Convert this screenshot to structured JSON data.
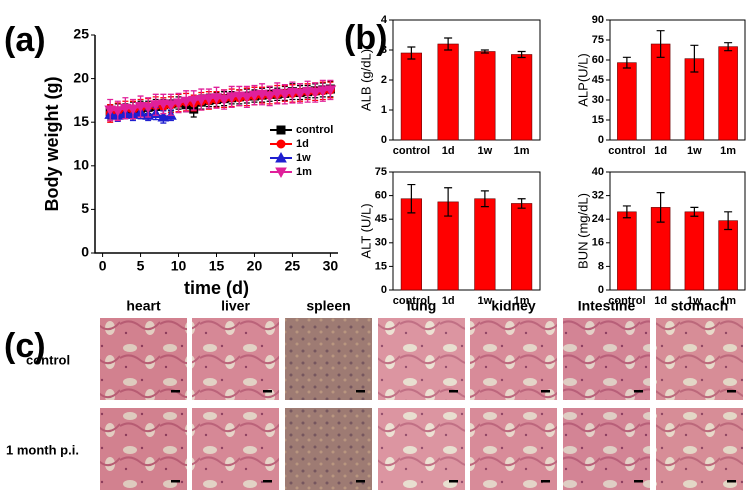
{
  "panels": {
    "labels": [
      "(a)",
      "(b)",
      "(c)"
    ]
  },
  "chart_data": [
    {
      "type": "line",
      "xlabel": "time (d)",
      "ylabel": "Body weight (g)",
      "legend": "right",
      "x": [
        1,
        2,
        3,
        4,
        5,
        6,
        7,
        8,
        9,
        10,
        11,
        12,
        13,
        14,
        15,
        16,
        17,
        18,
        19,
        20,
        21,
        22,
        23,
        24,
        25,
        26,
        27,
        28,
        29,
        30
      ],
      "xlim": [
        -1,
        31
      ],
      "xticks": [
        0,
        5,
        10,
        15,
        20,
        25,
        30
      ],
      "ylim": [
        0,
        25
      ],
      "yticks": [
        0,
        5,
        10,
        15,
        20,
        25
      ],
      "series": [
        {
          "name": "control",
          "color": "#000000",
          "marker": "square",
          "values": [
            16.2,
            16.3,
            16.4,
            16.5,
            16.6,
            16.7,
            16.8,
            17.0,
            17.1,
            17.2,
            17.0,
            16.5,
            17.3,
            17.5,
            17.6,
            17.7,
            17.8,
            17.9,
            18.0,
            18.0,
            18.1,
            18.2,
            18.2,
            18.3,
            18.5,
            18.4,
            18.5,
            18.6,
            18.7,
            18.8
          ],
          "errors": [
            0.8,
            0.8,
            0.7,
            0.8,
            0.8,
            0.7,
            0.8,
            0.6,
            0.8,
            0.7,
            0.8,
            0.9,
            0.8,
            0.7,
            0.8,
            0.8,
            0.7,
            0.8,
            0.8,
            0.7,
            0.8,
            0.8,
            0.7,
            0.8,
            0.9,
            0.8,
            0.7,
            0.8,
            0.8,
            0.9
          ]
        },
        {
          "name": "1d",
          "color": "#ff0000",
          "marker": "circle",
          "values": [
            16.0,
            16.2,
            16.5,
            16.4,
            16.6,
            16.8,
            16.9,
            16.8,
            17.0,
            17.2,
            17.3,
            17.2,
            17.4,
            17.5,
            17.6,
            17.7,
            17.8,
            17.8,
            17.9,
            18.0,
            18.1,
            18.1,
            18.2,
            18.3,
            18.3,
            18.4,
            18.5,
            18.5,
            18.6,
            18.7
          ],
          "errors": [
            1.0,
            1.0,
            0.9,
            1.0,
            1.0,
            0.9,
            1.0,
            1.0,
            0.9,
            1.0,
            1.0,
            0.9,
            1.0,
            1.0,
            0.9,
            1.0,
            1.0,
            0.9,
            1.0,
            1.0,
            0.9,
            1.0,
            1.0,
            0.9,
            1.0,
            1.0,
            0.9,
            1.0,
            1.0,
            0.9
          ]
        },
        {
          "name": "1w",
          "color": "#1f1fd0",
          "marker": "triangle-up",
          "values": [
            15.9,
            15.8,
            16.0,
            15.9,
            16.1,
            15.8,
            16.0,
            15.6,
            15.8,
            null,
            null,
            null,
            null,
            null,
            null,
            null,
            null,
            null,
            null,
            null,
            null,
            null,
            null,
            null,
            null,
            null,
            null,
            null,
            null,
            null
          ],
          "errors": [
            0.7,
            0.7,
            0.6,
            0.7,
            0.7,
            0.6,
            0.7,
            0.7,
            0.6,
            null,
            null,
            null,
            null,
            null,
            null,
            null,
            null,
            null,
            null,
            null,
            null,
            null,
            null,
            null,
            null,
            null,
            null,
            null,
            null,
            null
          ]
        },
        {
          "name": "1m",
          "color": "#e0209a",
          "marker": "triangle-down",
          "values": [
            16.4,
            16.3,
            16.6,
            16.5,
            16.8,
            16.7,
            17.0,
            17.1,
            17.0,
            17.2,
            17.4,
            17.5,
            17.6,
            17.7,
            17.8,
            17.6,
            17.9,
            18.0,
            17.9,
            18.1,
            18.2,
            18.0,
            18.3,
            18.2,
            18.4,
            18.3,
            18.5,
            18.4,
            18.6,
            18.7
          ],
          "errors": [
            1.2,
            1.1,
            1.2,
            1.1,
            1.2,
            1.1,
            1.2,
            1.1,
            1.2,
            1.1,
            1.2,
            1.1,
            1.2,
            1.1,
            1.2,
            1.1,
            1.2,
            1.1,
            1.2,
            1.1,
            1.2,
            1.1,
            1.2,
            1.1,
            1.2,
            1.1,
            1.2,
            1.1,
            1.2,
            1.1
          ]
        }
      ]
    },
    {
      "type": "bar",
      "ylabel": "ALB (g/dL)",
      "color": "#ff0000",
      "categories": [
        "control",
        "1d",
        "1w",
        "1m"
      ],
      "values": [
        2.9,
        3.2,
        2.95,
        2.85
      ],
      "errors": [
        0.2,
        0.2,
        0.05,
        0.1
      ],
      "ylim": [
        0,
        4
      ],
      "yticks": [
        0,
        1,
        2,
        3,
        4
      ]
    },
    {
      "type": "bar",
      "ylabel": "ALP(U/L)",
      "color": "#ff0000",
      "categories": [
        "control",
        "1d",
        "1w",
        "1m"
      ],
      "values": [
        58,
        72,
        61,
        70
      ],
      "errors": [
        4,
        10,
        10,
        3
      ],
      "ylim": [
        0,
        90
      ],
      "yticks": [
        0,
        15,
        30,
        45,
        60,
        75,
        90
      ]
    },
    {
      "type": "bar",
      "ylabel": "ALT (U/L)",
      "color": "#ff0000",
      "categories": [
        "control",
        "1d",
        "1w",
        "1m"
      ],
      "values": [
        58,
        56,
        58,
        55
      ],
      "errors": [
        9,
        9,
        5,
        3
      ],
      "ylim": [
        0,
        75
      ],
      "yticks": [
        0,
        15,
        30,
        45,
        60,
        75
      ]
    },
    {
      "type": "bar",
      "ylabel": "BUN (mg/dL)",
      "color": "#ff0000",
      "categories": [
        "control",
        "1d",
        "1w",
        "1m"
      ],
      "values": [
        26.5,
        28,
        26.5,
        23.5
      ],
      "errors": [
        2,
        5,
        1.5,
        3
      ],
      "ylim": [
        0,
        40
      ],
      "yticks": [
        0,
        8,
        16,
        24,
        32,
        40
      ]
    }
  ],
  "histology": {
    "columns": [
      "heart",
      "liver",
      "spleen",
      "lung",
      "kidney",
      "Intestine",
      "stomach"
    ],
    "rows": [
      "control",
      "1 month p.i."
    ]
  }
}
